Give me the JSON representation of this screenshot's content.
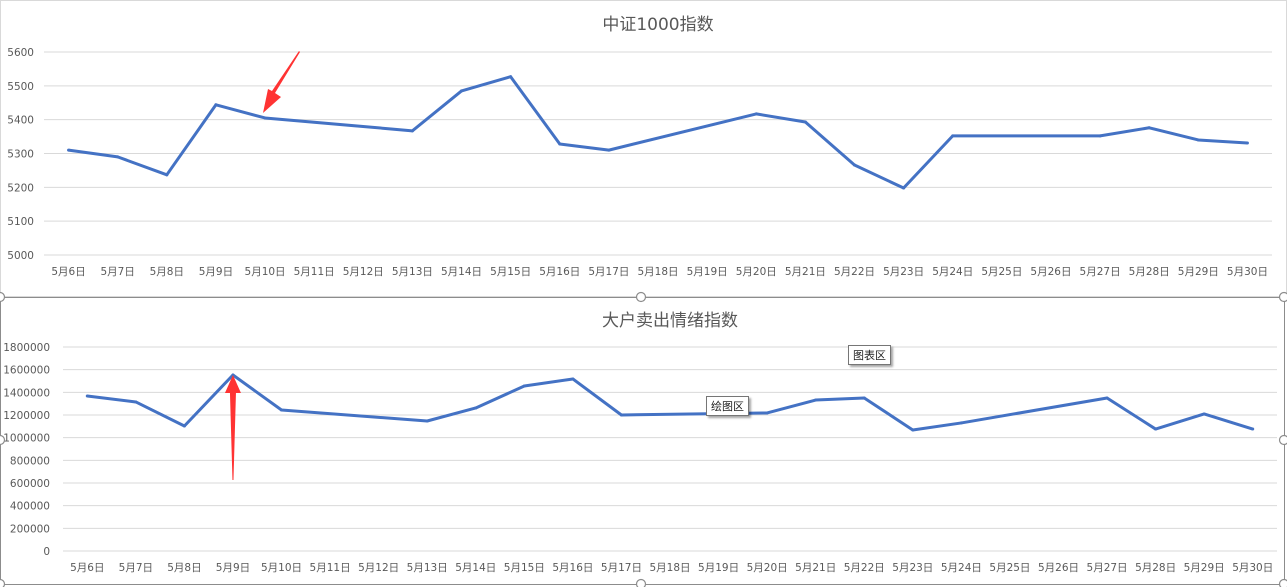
{
  "chart_data": [
    {
      "type": "line",
      "title": "中证1000指数",
      "categories": [
        "5月6日",
        "5月7日",
        "5月8日",
        "5月9日",
        "5月10日",
        "5月11日",
        "5月12日",
        "5月13日",
        "5月14日",
        "5月15日",
        "5月16日",
        "5月17日",
        "5月18日",
        "5月19日",
        "5月20日",
        "5月21日",
        "5月22日",
        "5月23日",
        "5月24日",
        "5月25日",
        "5月26日",
        "5月27日",
        "5月28日",
        "5月29日",
        "5月30日"
      ],
      "values": [
        5310,
        5290,
        5237,
        5444,
        5405,
        null,
        null,
        5367,
        5485,
        5527,
        5328,
        5310,
        null,
        null,
        5417,
        5393,
        5266,
        5198,
        5352,
        null,
        null,
        5352,
        5376,
        5340,
        5331
      ],
      "ylim": [
        5000,
        5600
      ],
      "yticks": [
        5000,
        5100,
        5200,
        5300,
        5400,
        5500,
        5600
      ],
      "grid": true,
      "color": "#4472C4",
      "annotation": {
        "type": "arrow",
        "color": "#FF3333",
        "points_to": "5月10日"
      }
    },
    {
      "type": "line",
      "title": "大户卖出情绪指数",
      "categories": [
        "5月6日",
        "5月7日",
        "5月8日",
        "5月9日",
        "5月10日",
        "5月11日",
        "5月12日",
        "5月13日",
        "5月14日",
        "5月15日",
        "5月16日",
        "5月17日",
        "5月18日",
        "5月19日",
        "5月20日",
        "5月21日",
        "5月22日",
        "5月23日",
        "5月24日",
        "5月25日",
        "5月26日",
        "5月27日",
        "5月28日",
        "5月29日",
        "5月30日"
      ],
      "values": [
        1368000,
        1315000,
        1103000,
        1553000,
        1244000,
        null,
        null,
        1147000,
        1262000,
        1456000,
        1518000,
        1200000,
        null,
        null,
        1218000,
        1332000,
        1350000,
        1068000,
        1130000,
        null,
        null,
        1350000,
        1076000,
        1209000,
        1076000
      ],
      "ylim": [
        0,
        1800000
      ],
      "yticks": [
        0,
        200000,
        400000,
        600000,
        800000,
        1000000,
        1200000,
        1400000,
        1600000,
        1800000
      ],
      "grid": true,
      "color": "#4472C4",
      "annotation": {
        "type": "arrow",
        "color": "#FF3333",
        "points_to": "5月9日"
      }
    }
  ],
  "tooltips": {
    "chart_area": "图表区",
    "plot_area": "绘图区"
  }
}
